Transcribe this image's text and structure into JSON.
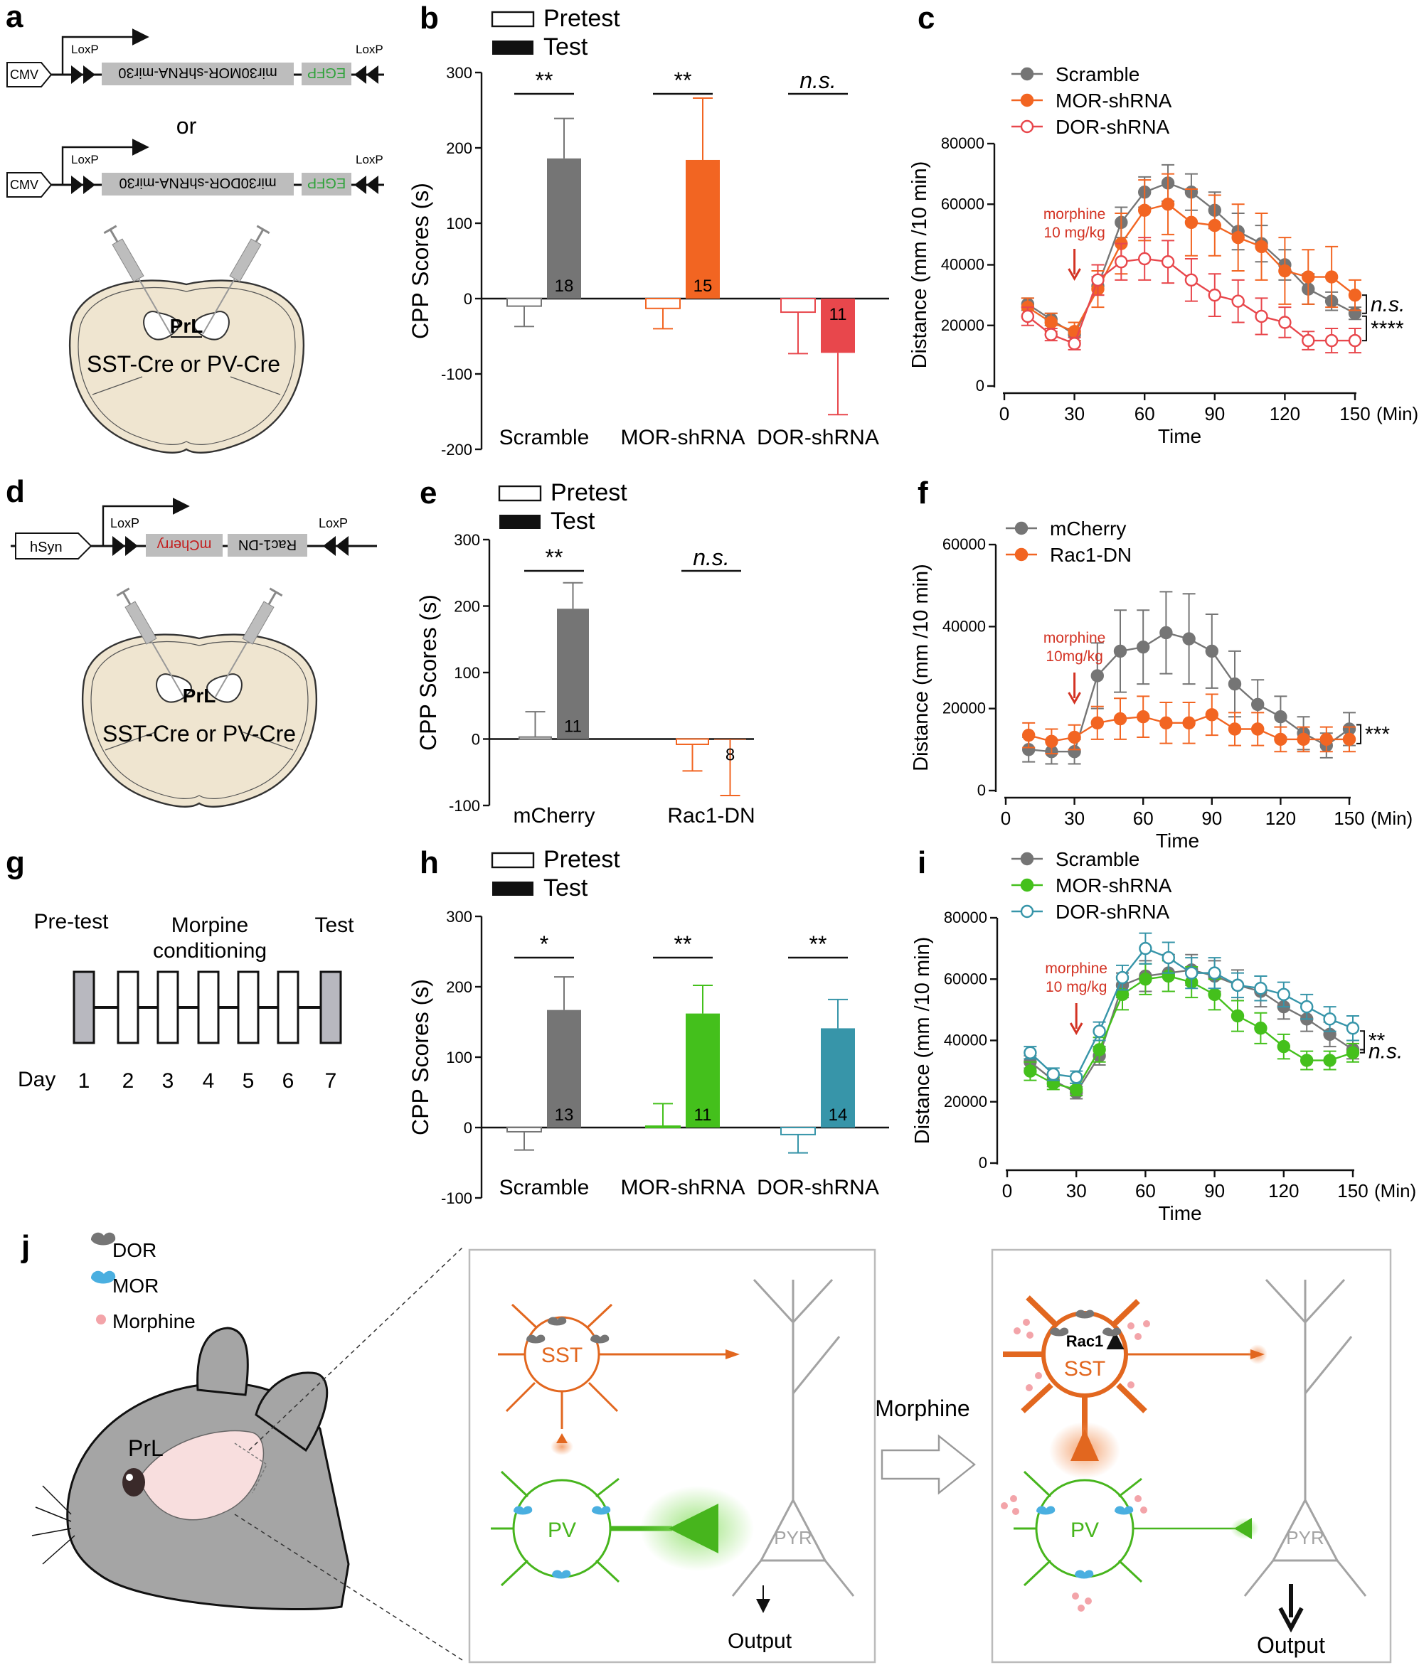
{
  "colors": {
    "gray": "#757575",
    "orange": "#f26522",
    "red": "#e8474c",
    "green": "#44c01c",
    "teal": "#3795a9",
    "sst": "#e2671f",
    "pv": "#47b51d",
    "pyr": "#a3a3a3",
    "annot_red": "#d33324",
    "egfp_green": "#2fa23a",
    "mcherry_red": "#c31d1d",
    "brain_fill": "#efe5d0"
  },
  "panel_labels": [
    "a",
    "b",
    "c",
    "d",
    "e",
    "f",
    "g",
    "h",
    "i",
    "j"
  ],
  "panel_a": {
    "promoter": "CMV",
    "loxp": "LoxP",
    "construct1": [
      "mir30MOR-shRNA-mir30",
      "EGFP"
    ],
    "or_text": "or",
    "construct2": [
      "mir30DOR-shRNA-mir30",
      "EGFP"
    ],
    "region": "PrL",
    "mouse_line": "SST-Cre or PV-Cre"
  },
  "panel_d": {
    "promoter": "hSyn",
    "loxp": "LoxP",
    "construct": [
      "Rac1-DN",
      "mCherry"
    ],
    "region": "PrL",
    "mouse_line": "SST-Cre or PV-Cre"
  },
  "panel_g": {
    "pretest": "Pre-test",
    "conditioning": "Morpine conditioning",
    "test": "Test",
    "day_label": "Day",
    "days": [
      "1",
      "2",
      "3",
      "4",
      "5",
      "6",
      "7"
    ]
  },
  "chart_data": [
    {
      "id": "b",
      "type": "bar",
      "ylabel": "CPP Scores (s)",
      "ylim": [
        -200,
        300
      ],
      "yticks": [
        300,
        200,
        100,
        0,
        -100,
        -200
      ],
      "legend": [
        "Pretest",
        "Test"
      ],
      "categories": [
        "Scramble",
        "MOR-shRNA",
        "DOR-shRNA"
      ],
      "series": [
        {
          "name": "Pretest",
          "values": [
            -10,
            -13,
            -18
          ],
          "errors": [
            27,
            27,
            55
          ]
        },
        {
          "name": "Test",
          "values": [
            186,
            184,
            -72
          ],
          "errors": [
            53,
            82,
            82
          ]
        }
      ],
      "bar_colors": [
        "#757575",
        "#f26522",
        "#e8474c"
      ],
      "n_labels": [
        "18",
        "15",
        "11"
      ],
      "significance": [
        "**",
        "**",
        "n.s."
      ]
    },
    {
      "id": "c",
      "type": "line",
      "xlabel": "Time",
      "xunit": "(Min)",
      "ylabel": "Distance (mm /10 min)",
      "xlim": [
        0,
        150
      ],
      "ylim": [
        0,
        80000
      ],
      "xticks": [
        0,
        30,
        60,
        90,
        120,
        150
      ],
      "yticks": [
        0,
        20000,
        40000,
        60000,
        80000
      ],
      "x": [
        10,
        20,
        30,
        40,
        50,
        60,
        70,
        80,
        90,
        100,
        110,
        120,
        130,
        140,
        150
      ],
      "series": [
        {
          "name": "Scramble",
          "style": "filled",
          "color": "#757575",
          "values": [
            27000,
            22000,
            17000,
            33000,
            54000,
            64000,
            67000,
            64000,
            58000,
            51000,
            47000,
            40000,
            32000,
            28000,
            24000
          ],
          "errors": [
            2000,
            2000,
            2000,
            3000,
            5000,
            5000,
            6000,
            6000,
            6000,
            6000,
            6000,
            5000,
            5000,
            3000,
            2000
          ]
        },
        {
          "name": "MOR-shRNA",
          "style": "filled",
          "color": "#f26522",
          "values": [
            26000,
            21000,
            18000,
            32000,
            47000,
            58000,
            60000,
            54000,
            53000,
            49000,
            46000,
            38000,
            36000,
            36000,
            30000
          ],
          "errors": [
            3000,
            3000,
            3000,
            6000,
            10000,
            10000,
            10000,
            11000,
            10000,
            11000,
            11000,
            11000,
            9000,
            10000,
            5000
          ]
        },
        {
          "name": "DOR-shRNA",
          "style": "open",
          "color": "#e8474c",
          "values": [
            23000,
            17000,
            14000,
            35000,
            41000,
            42000,
            41000,
            35000,
            30000,
            28000,
            23000,
            21000,
            15000,
            15000,
            15000
          ],
          "errors": [
            3000,
            2000,
            2000,
            5000,
            6000,
            7000,
            7000,
            7000,
            7000,
            7000,
            6000,
            5000,
            3000,
            4000,
            4000
          ]
        }
      ],
      "annotation": [
        "morphine",
        "10 mg/kg"
      ],
      "significance": [
        "n.s.",
        "****"
      ]
    },
    {
      "id": "e",
      "type": "bar",
      "ylabel": "CPP Scores (s)",
      "ylim": [
        -100,
        300
      ],
      "yticks": [
        300,
        200,
        100,
        0,
        -100
      ],
      "legend": [
        "Pretest",
        "Test"
      ],
      "categories": [
        "mCherry",
        "Rac1-DN"
      ],
      "series": [
        {
          "name": "Pretest",
          "values": [
            3,
            -8
          ],
          "errors": [
            38,
            40
          ]
        },
        {
          "name": "Test",
          "values": [
            196,
            -1
          ],
          "errors": [
            39,
            84
          ]
        }
      ],
      "bar_colors": [
        "#757575",
        "#f26522"
      ],
      "n_labels": [
        "11",
        "8"
      ],
      "significance": [
        "**",
        "n.s."
      ]
    },
    {
      "id": "f",
      "type": "line",
      "xlabel": "Time",
      "xunit": "(Min)",
      "ylabel": "Distance (mm /10 min)",
      "xlim": [
        0,
        150
      ],
      "ylim": [
        0,
        60000
      ],
      "xticks": [
        0,
        30,
        60,
        90,
        120,
        150
      ],
      "yticks": [
        0,
        20000,
        40000,
        60000
      ],
      "x": [
        10,
        20,
        30,
        40,
        50,
        60,
        70,
        80,
        90,
        100,
        110,
        120,
        130,
        140,
        150
      ],
      "series": [
        {
          "name": "mCherry",
          "style": "filled",
          "color": "#757575",
          "values": [
            10000,
            9500,
            9500,
            28000,
            34000,
            35000,
            38500,
            37000,
            34000,
            26000,
            21000,
            18000,
            14000,
            11000,
            15000
          ],
          "errors": [
            3000,
            3000,
            3000,
            8000,
            10000,
            9000,
            10000,
            11000,
            9000,
            8000,
            6000,
            5000,
            4000,
            3000,
            4000
          ]
        },
        {
          "name": "Rac1-DN",
          "style": "filled",
          "color": "#f26522",
          "values": [
            13500,
            12000,
            13000,
            16500,
            17500,
            18000,
            16500,
            16500,
            18500,
            15000,
            15000,
            12500,
            12500,
            12500,
            12500
          ],
          "errors": [
            3000,
            3000,
            3000,
            4000,
            5000,
            5000,
            5000,
            5000,
            5000,
            4000,
            4000,
            3000,
            3000,
            3000,
            3000
          ]
        }
      ],
      "annotation": [
        "morphine",
        "10mg/kg"
      ],
      "significance": [
        "***"
      ]
    },
    {
      "id": "h",
      "type": "bar",
      "ylabel": "CPP Scores (s)",
      "ylim": [
        -100,
        300
      ],
      "yticks": [
        300,
        200,
        100,
        0,
        -100
      ],
      "legend": [
        "Pretest",
        "Test"
      ],
      "categories": [
        "Scramble",
        "MOR-shRNA",
        "DOR-shRNA"
      ],
      "series": [
        {
          "name": "Pretest",
          "values": [
            -6,
            2,
            -10
          ],
          "errors": [
            26,
            32,
            26
          ]
        },
        {
          "name": "Test",
          "values": [
            167,
            162,
            141
          ],
          "errors": [
            47,
            40,
            41
          ]
        }
      ],
      "bar_colors": [
        "#757575",
        "#44c01c",
        "#3795a9"
      ],
      "n_labels": [
        "13",
        "11",
        "14"
      ],
      "significance": [
        "*",
        "**",
        "**"
      ]
    },
    {
      "id": "i",
      "type": "line",
      "xlabel": "Time",
      "xunit": "(Min)",
      "ylabel": "Distance (mm /10 min)",
      "xlim": [
        0,
        150
      ],
      "ylim": [
        0,
        80000
      ],
      "xticks": [
        0,
        30,
        60,
        90,
        120,
        150
      ],
      "yticks": [
        0,
        20000,
        40000,
        60000,
        80000
      ],
      "x": [
        10,
        20,
        30,
        40,
        50,
        60,
        70,
        80,
        90,
        100,
        110,
        120,
        130,
        140,
        150
      ],
      "series": [
        {
          "name": "Scramble",
          "style": "filled",
          "color": "#757575",
          "values": [
            33000,
            27000,
            23000,
            35000,
            58000,
            61000,
            62000,
            63000,
            61000,
            58000,
            56000,
            51000,
            47000,
            42000,
            37000
          ],
          "errors": [
            2000,
            2000,
            2000,
            3000,
            4000,
            5000,
            6000,
            5000,
            5000,
            5000,
            5000,
            4000,
            4000,
            4000,
            3000
          ]
        },
        {
          "name": "MOR-shRNA",
          "style": "filled",
          "color": "#44c01c",
          "values": [
            30000,
            26000,
            24000,
            37000,
            55000,
            60000,
            61000,
            59000,
            55000,
            48000,
            44000,
            38000,
            33500,
            33500,
            36000
          ],
          "errors": [
            3000,
            2000,
            2000,
            4000,
            5000,
            5000,
            5000,
            5000,
            5000,
            5000,
            5000,
            4000,
            3000,
            3000,
            3000
          ]
        },
        {
          "name": "DOR-shRNA",
          "style": "open",
          "color": "#3795a9",
          "values": [
            36000,
            29000,
            28000,
            43000,
            60500,
            70000,
            67000,
            62000,
            62000,
            58000,
            57000,
            55000,
            51000,
            47000,
            44000
          ],
          "errors": [
            2000,
            2000,
            2000,
            3000,
            4000,
            5000,
            5000,
            5000,
            5000,
            4000,
            4000,
            4000,
            4000,
            4000,
            4000
          ]
        }
      ],
      "annotation": [
        "morphine",
        "10 mg/kg"
      ],
      "significance": [
        "n.s.",
        "**"
      ]
    }
  ],
  "panel_j": {
    "legend": [
      "DOR",
      "MOR",
      "Morphine"
    ],
    "region": "PrL",
    "sst": "SST",
    "pv": "PV",
    "pyr": "PYR",
    "output": "Output",
    "transition": "Morphine",
    "rac1": "Rac1"
  }
}
